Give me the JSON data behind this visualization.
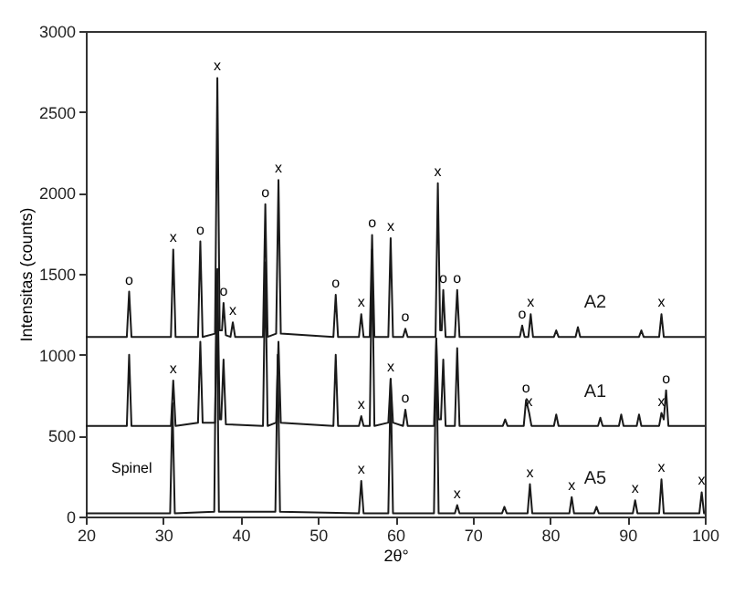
{
  "chart_data": {
    "type": "line",
    "xlabel": "2θ°",
    "ylabel": "Intensitas (counts)",
    "xlim": [
      20,
      100
    ],
    "xticks": [
      20,
      30,
      40,
      50,
      60,
      70,
      80,
      90,
      100
    ],
    "ylim": [
      0,
      3000
    ],
    "yticks": [
      0,
      500,
      1000,
      1500,
      2000,
      2500,
      3000
    ],
    "grid": false,
    "marker": "none",
    "line_style": "solid",
    "series": [
      {
        "name": "A2",
        "color": "#1a1a1a",
        "x": [
          20,
          25.3,
          25.6,
          25.9,
          31.0,
          31.3,
          31.6,
          34.5,
          34.8,
          35.1,
          36.7,
          37.0,
          37.3,
          37.6,
          37.8,
          38.1,
          38.7,
          39.0,
          39.3,
          42.9,
          43.2,
          43.5,
          44.6,
          44.9,
          45.2,
          52.0,
          52.3,
          52.6,
          55.3,
          55.6,
          55.9,
          56.7,
          57.0,
          57.3,
          59.1,
          59.4,
          59.7,
          61.0,
          61.3,
          61.6,
          65.2,
          65.5,
          65.8,
          66.0,
          66.2,
          66.5,
          67.7,
          68.0,
          68.3,
          76.1,
          76.4,
          76.7,
          77.2,
          77.5,
          77.8,
          80.5,
          80.8,
          81.1,
          83.3,
          83.6,
          83.9,
          91.5,
          91.8,
          92.1,
          94.1,
          94.4,
          94.7,
          100
        ],
        "values": [
          1110,
          1110,
          1390,
          1110,
          1110,
          1650,
          1110,
          1110,
          1700,
          1110,
          1130,
          2710,
          1150,
          1150,
          1320,
          1120,
          1110,
          1200,
          1110,
          1110,
          1930,
          1110,
          1130,
          2080,
          1130,
          1110,
          1370,
          1110,
          1110,
          1250,
          1110,
          1110,
          1740,
          1110,
          1110,
          1720,
          1110,
          1110,
          1160,
          1110,
          1110,
          2060,
          1150,
          1150,
          1400,
          1110,
          1110,
          1400,
          1110,
          1110,
          1180,
          1110,
          1110,
          1250,
          1110,
          1110,
          1150,
          1110,
          1110,
          1170,
          1110,
          1110,
          1150,
          1110,
          1110,
          1250,
          1110,
          1110
        ]
      },
      {
        "name": "A1",
        "color": "#1a1a1a",
        "x": [
          20,
          25.3,
          25.6,
          25.9,
          31.0,
          31.3,
          31.6,
          34.5,
          34.8,
          35.1,
          36.7,
          37.0,
          37.3,
          37.5,
          37.8,
          38.1,
          42.9,
          43.2,
          43.5,
          44.6,
          44.9,
          45.2,
          52.0,
          52.3,
          52.6,
          55.3,
          55.6,
          55.9,
          56.7,
          57.0,
          57.3,
          59.1,
          59.4,
          59.7,
          61.0,
          61.3,
          61.6,
          65.0,
          65.3,
          65.6,
          65.9,
          66.2,
          66.5,
          67.7,
          68.0,
          68.3,
          73.9,
          74.2,
          74.5,
          76.6,
          76.9,
          77.3,
          77.6,
          80.5,
          80.8,
          81.1,
          86.2,
          86.5,
          86.8,
          88.9,
          89.2,
          89.5,
          91.2,
          91.5,
          91.8,
          94.1,
          94.4,
          94.7,
          95.0,
          95.3,
          100
        ],
        "values": [
          560,
          560,
          1000,
          560,
          560,
          840,
          560,
          580,
          1080,
          580,
          580,
          1530,
          600,
          600,
          970,
          570,
          560,
          1570,
          560,
          580,
          1080,
          580,
          560,
          1000,
          560,
          560,
          620,
          560,
          560,
          1650,
          560,
          580,
          850,
          580,
          560,
          660,
          560,
          560,
          1100,
          600,
          600,
          970,
          560,
          560,
          1040,
          560,
          560,
          600,
          560,
          560,
          720,
          640,
          560,
          560,
          630,
          560,
          560,
          610,
          560,
          560,
          630,
          560,
          560,
          630,
          560,
          560,
          640,
          600,
          780,
          560,
          560
        ]
      },
      {
        "name": "A5",
        "color": "#1a1a1a",
        "x": [
          20,
          30.9,
          31.2,
          31.5,
          36.6,
          36.9,
          37.2,
          44.5,
          44.8,
          45.1,
          55.3,
          55.6,
          55.9,
          59.1,
          59.4,
          59.7,
          65.0,
          65.3,
          65.6,
          67.7,
          68.0,
          68.3,
          73.8,
          74.1,
          74.4,
          77.1,
          77.4,
          77.7,
          82.5,
          82.8,
          83.1,
          85.7,
          86.0,
          86.3,
          90.7,
          91.0,
          91.3,
          94.1,
          94.4,
          94.7,
          99.3,
          99.6,
          99.9,
          100
        ],
        "values": [
          20,
          20,
          700,
          20,
          30,
          1500,
          30,
          30,
          1000,
          30,
          20,
          220,
          20,
          20,
          850,
          20,
          20,
          1100,
          20,
          20,
          70,
          20,
          20,
          60,
          20,
          20,
          200,
          20,
          20,
          120,
          20,
          20,
          60,
          20,
          20,
          100,
          20,
          20,
          230,
          20,
          20,
          150,
          20,
          20
        ]
      }
    ],
    "annotations": [
      "Spinel",
      {
        "text": "o",
        "x": 25.6,
        "y": 1390
      },
      {
        "text": "x",
        "x": 31.3,
        "y": 1650
      },
      {
        "text": "o",
        "x": 34.8,
        "y": 1700
      },
      {
        "text": "x",
        "x": 37.0,
        "y": 2710
      },
      {
        "text": "o",
        "x": 37.8,
        "y": 1320
      },
      {
        "text": "x",
        "x": 39.0,
        "y": 1200
      },
      {
        "text": "o",
        "x": 43.2,
        "y": 1930
      },
      {
        "text": "x",
        "x": 44.9,
        "y": 2080
      },
      {
        "text": "o",
        "x": 52.3,
        "y": 1370
      },
      {
        "text": "x",
        "x": 55.6,
        "y": 1250
      },
      {
        "text": "o",
        "x": 57.0,
        "y": 1740
      },
      {
        "text": "x",
        "x": 59.4,
        "y": 1720
      },
      {
        "text": "o",
        "x": 61.3,
        "y": 1160
      },
      {
        "text": "x",
        "x": 65.5,
        "y": 2060
      },
      {
        "text": "o",
        "x": 66.2,
        "y": 1400
      },
      {
        "text": "o",
        "x": 68.0,
        "y": 1400
      },
      {
        "text": "o",
        "x": 76.4,
        "y": 1180
      },
      {
        "text": "x",
        "x": 77.5,
        "y": 1250
      },
      {
        "text": "x",
        "x": 94.4,
        "y": 1250
      },
      {
        "text": "x",
        "x": 31.3,
        "y": 840
      },
      {
        "text": "x",
        "x": 55.6,
        "y": 620
      },
      {
        "text": "x",
        "x": 59.4,
        "y": 850
      },
      {
        "text": "o",
        "x": 61.3,
        "y": 660
      },
      {
        "text": "o",
        "x": 76.9,
        "y": 720
      },
      {
        "text": "x",
        "x": 77.3,
        "y": 640
      },
      {
        "text": "x",
        "x": 94.4,
        "y": 640
      },
      {
        "text": "o",
        "x": 95.0,
        "y": 780
      },
      {
        "text": "x",
        "x": 55.6,
        "y": 220
      },
      {
        "text": "x",
        "x": 68.0,
        "y": 70
      },
      {
        "text": "x",
        "x": 77.4,
        "y": 200
      },
      {
        "text": "x",
        "x": 82.8,
        "y": 120
      },
      {
        "text": "x",
        "x": 91.0,
        "y": 100
      },
      {
        "text": "x",
        "x": 94.4,
        "y": 230
      },
      {
        "text": "x",
        "x": 99.6,
        "y": 150
      }
    ]
  }
}
